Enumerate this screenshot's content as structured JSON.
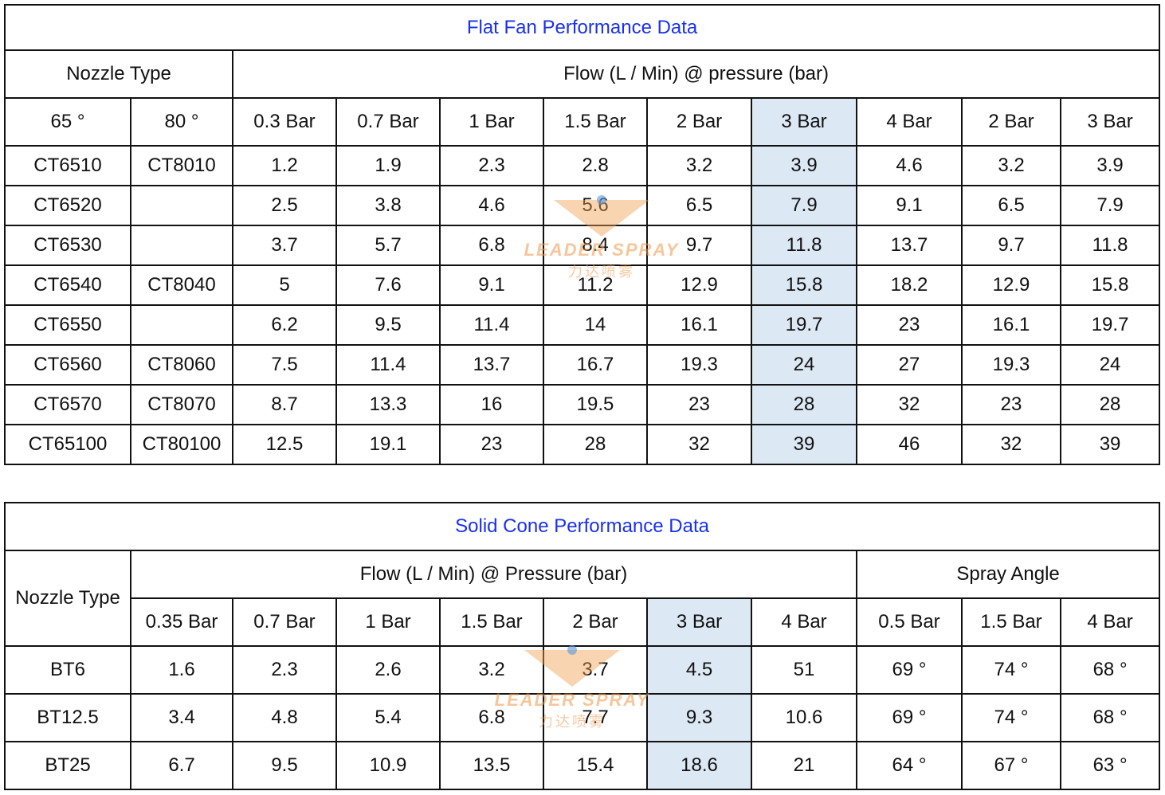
{
  "flat_fan": {
    "title": "Flat Fan Performance Data",
    "nozzle_header": "Nozzle Type",
    "flow_header": "Flow (L / Min) @ pressure (bar)",
    "angles": [
      "65 °",
      "80 °"
    ],
    "pressures": [
      "0.3 Bar",
      "0.7 Bar",
      "1 Bar",
      "1.5 Bar",
      "2 Bar",
      "3 Bar",
      "4 Bar",
      "2 Bar",
      "3 Bar"
    ],
    "rows": [
      {
        "n65": "CT6510",
        "n80": "CT8010",
        "v": [
          "1.2",
          "1.9",
          "2.3",
          "2.8",
          "3.2",
          "3.9",
          "4.6",
          "3.2",
          "3.9"
        ]
      },
      {
        "n65": "CT6520",
        "n80": "",
        "v": [
          "2.5",
          "3.8",
          "4.6",
          "5.6",
          "6.5",
          "7.9",
          "9.1",
          "6.5",
          "7.9"
        ]
      },
      {
        "n65": "CT6530",
        "n80": "",
        "v": [
          "3.7",
          "5.7",
          "6.8",
          "8.4",
          "9.7",
          "11.8",
          "13.7",
          "9.7",
          "11.8"
        ]
      },
      {
        "n65": "CT6540",
        "n80": "CT8040",
        "v": [
          "5",
          "7.6",
          "9.1",
          "11.2",
          "12.9",
          "15.8",
          "18.2",
          "12.9",
          "15.8"
        ]
      },
      {
        "n65": "CT6550",
        "n80": "",
        "v": [
          "6.2",
          "9.5",
          "11.4",
          "14",
          "16.1",
          "19.7",
          "23",
          "16.1",
          "19.7"
        ]
      },
      {
        "n65": "CT6560",
        "n80": "CT8060",
        "v": [
          "7.5",
          "11.4",
          "13.7",
          "16.7",
          "19.3",
          "24",
          "27",
          "19.3",
          "24"
        ]
      },
      {
        "n65": "CT6570",
        "n80": "CT8070",
        "v": [
          "8.7",
          "13.3",
          "16",
          "19.5",
          "23",
          "28",
          "32",
          "23",
          "28"
        ]
      },
      {
        "n65": "CT65100",
        "n80": "CT80100",
        "v": [
          "12.5",
          "19.1",
          "23",
          "28",
          "32",
          "39",
          "46",
          "32",
          "39"
        ]
      }
    ]
  },
  "solid_cone": {
    "title": "Solid Cone Performance Data",
    "nozzle_header": "Nozzle Type",
    "flow_header": "Flow (L / Min) @ Pressure (bar)",
    "angle_header": "Spray Angle",
    "pressures": [
      "0.35 Bar",
      "0.7 Bar",
      "1 Bar",
      "1.5 Bar",
      "2 Bar",
      "3 Bar",
      "4 Bar"
    ],
    "angle_pressures": [
      "0.5 Bar",
      "1.5 Bar",
      "4 Bar"
    ],
    "rows": [
      {
        "name": "BT6",
        "v": [
          "1.6",
          "2.3",
          "2.6",
          "3.2",
          "3.7",
          "4.5",
          "51"
        ],
        "a": [
          "69 °",
          "74 °",
          "68 °"
        ]
      },
      {
        "name": "BT12.5",
        "v": [
          "3.4",
          "4.8",
          "5.4",
          "6.8",
          "7.7",
          "9.3",
          "10.6"
        ],
        "a": [
          "69 °",
          "74 °",
          "68 °"
        ]
      },
      {
        "name": "BT25",
        "v": [
          "6.7",
          "9.5",
          "10.9",
          "13.5",
          "15.4",
          "18.6",
          "21"
        ],
        "a": [
          "64 °",
          "67 °",
          "63 °"
        ]
      }
    ]
  },
  "watermark": {
    "brand": "LEADER SPRAY",
    "sub": "力达喷雾"
  },
  "colors": {
    "title": "#1a2ff0",
    "highlight": "#dce8f4",
    "border": "#111111"
  }
}
